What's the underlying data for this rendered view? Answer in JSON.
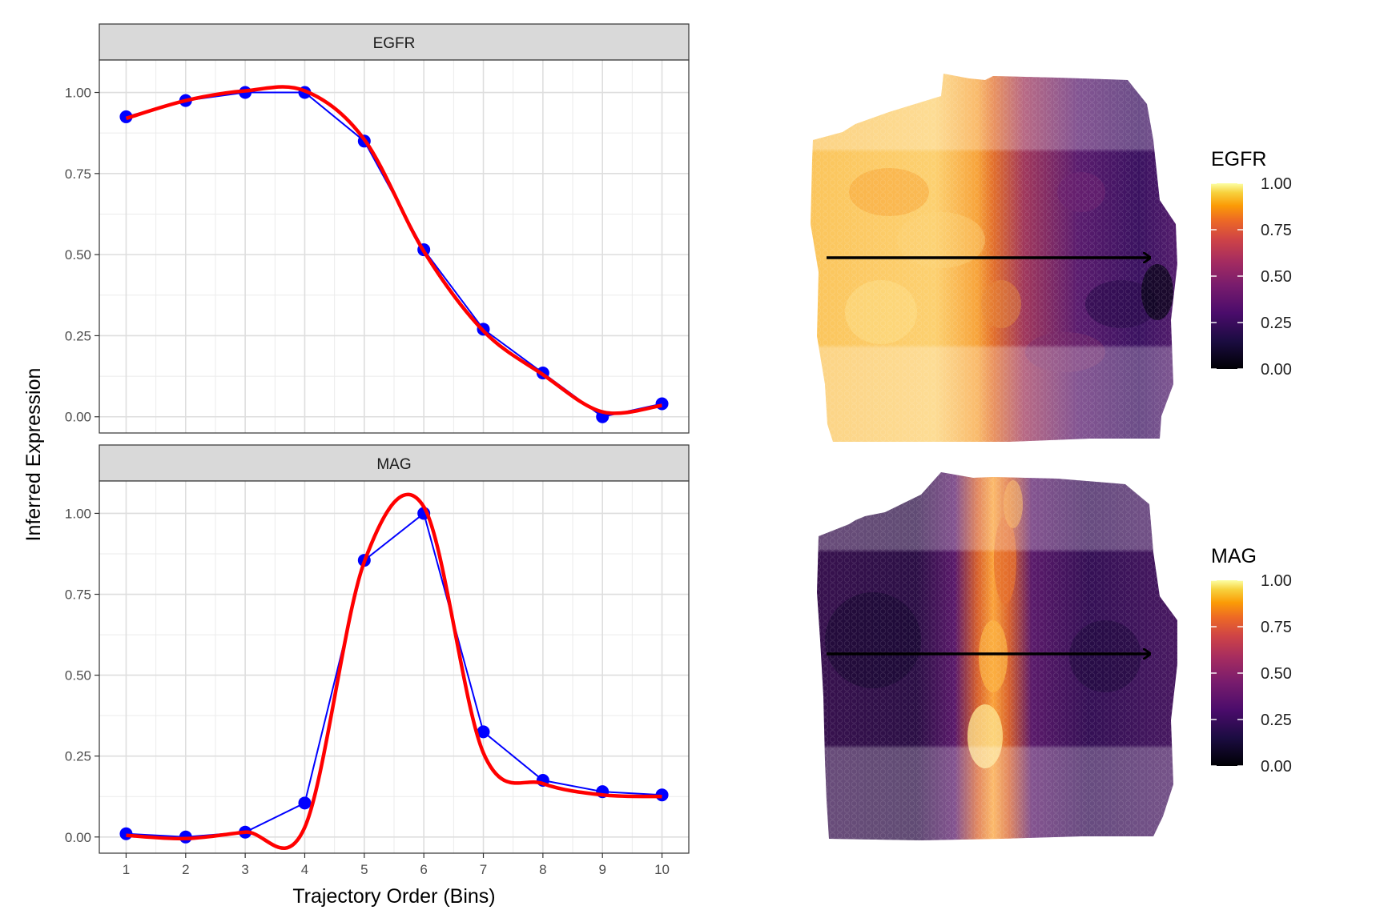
{
  "figure": {
    "ylabel": "Inferred Expression",
    "xlabel": "Trajectory Order (Bins)"
  },
  "chart_data": [
    {
      "type": "line",
      "panel": "EGFR",
      "x": [
        1,
        2,
        3,
        4,
        5,
        6,
        7,
        8,
        9,
        10
      ],
      "series": [
        {
          "role": "observed",
          "values": [
            0.925,
            0.975,
            1.0,
            1.0,
            0.85,
            0.515,
            0.27,
            0.135,
            0.0,
            0.04
          ],
          "color": "#0000ff"
        },
        {
          "role": "smoothed",
          "values": [
            0.92,
            0.975,
            1.005,
            1.005,
            0.855,
            0.51,
            0.265,
            0.13,
            0.015,
            0.035
          ],
          "color": "#ff0000"
        }
      ],
      "xticks": [
        "1",
        "2",
        "3",
        "4",
        "5",
        "6",
        "7",
        "8",
        "9",
        "10"
      ],
      "yticks": [
        "0.00",
        "0.25",
        "0.50",
        "0.75",
        "1.00"
      ],
      "xlim": [
        0.55,
        10.45
      ],
      "ylim": [
        -0.05,
        1.1
      ],
      "grid": true
    },
    {
      "type": "line",
      "panel": "MAG",
      "x": [
        1,
        2,
        3,
        4,
        5,
        6,
        7,
        8,
        9,
        10
      ],
      "series": [
        {
          "role": "observed",
          "values": [
            0.01,
            0.0,
            0.015,
            0.105,
            0.855,
            1.0,
            0.325,
            0.175,
            0.14,
            0.13
          ],
          "color": "#0000ff"
        },
        {
          "role": "smoothed",
          "values": [
            0.005,
            -0.005,
            0.015,
            0.03,
            0.85,
            1.02,
            0.26,
            0.165,
            0.13,
            0.125
          ],
          "color": "#ff0000"
        }
      ],
      "xticks": [
        "1",
        "2",
        "3",
        "4",
        "5",
        "6",
        "7",
        "8",
        "9",
        "10"
      ],
      "yticks": [
        "0.00",
        "0.25",
        "0.50",
        "0.75",
        "1.00"
      ],
      "xlim": [
        0.55,
        10.45
      ],
      "ylim": [
        -0.05,
        1.1
      ],
      "grid": true
    },
    {
      "type": "heatmap",
      "panel": "EGFR spatial map",
      "legend_title": "EGFR",
      "colorbar_ticks": [
        "0.00",
        "0.25",
        "0.50",
        "0.75",
        "1.00"
      ],
      "colorbar_range": [
        0,
        1
      ],
      "colormap": "inferno",
      "trajectory_arrow": "left-to-right"
    },
    {
      "type": "heatmap",
      "panel": "MAG spatial map",
      "legend_title": "MAG",
      "colorbar_ticks": [
        "0.00",
        "0.25",
        "0.50",
        "0.75",
        "1.00"
      ],
      "colorbar_range": [
        0,
        1
      ],
      "colormap": "inferno",
      "trajectory_arrow": "left-to-right"
    }
  ]
}
